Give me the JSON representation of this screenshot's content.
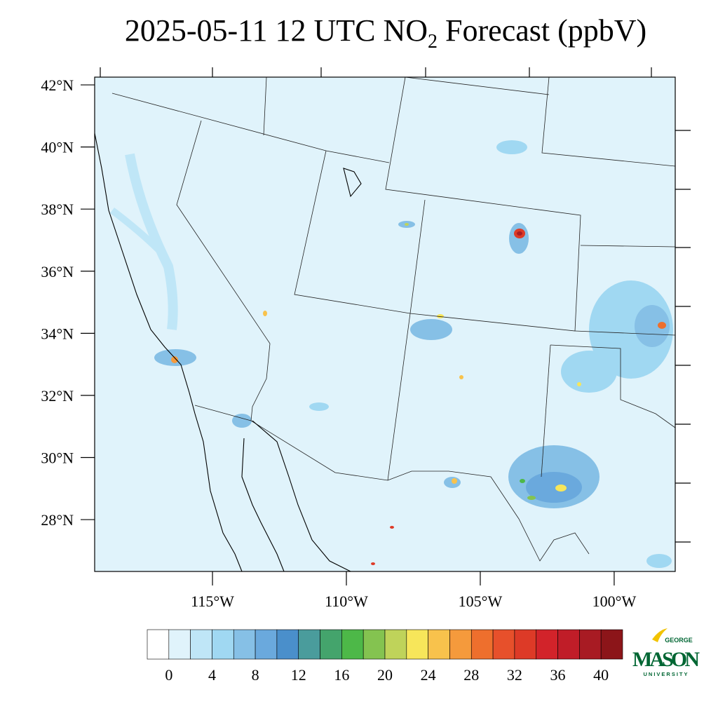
{
  "map": {
    "title": {
      "prefix": "2025-05-11 12 UTC NO",
      "subscript": "2",
      "suffix": " Forecast (ppbV)"
    },
    "xlim": [
      -119.4,
      -97.72
    ],
    "ylim": [
      26.33,
      42.25
    ],
    "xticks": [
      {
        "value": -115,
        "label": "115°W"
      },
      {
        "value": -110,
        "label": "110°W"
      },
      {
        "value": -105,
        "label": "105°W"
      },
      {
        "value": -100,
        "label": "100°W"
      }
    ],
    "yticks": [
      {
        "value": 42,
        "label": "42°N"
      },
      {
        "value": 40,
        "label": "40°N"
      },
      {
        "value": 38,
        "label": "38°N"
      },
      {
        "value": 36,
        "label": "36°N"
      },
      {
        "value": 34,
        "label": "34°N"
      },
      {
        "value": 32,
        "label": "32°N"
      },
      {
        "value": 30,
        "label": "30°N"
      },
      {
        "value": 28,
        "label": "28°N"
      }
    ],
    "colorbar": {
      "colors": [
        "#ffffff",
        "#e0f3fb",
        "#bfe6f7",
        "#a0d8f2",
        "#86c0e6",
        "#6aa9dd",
        "#4a8fcb",
        "#4a9c9c",
        "#44a46c",
        "#4db848",
        "#84c350",
        "#bfd35a",
        "#f7e65a",
        "#f8c24c",
        "#f59a3c",
        "#ee6f2d",
        "#e7502b",
        "#dd3a27",
        "#d2232a",
        "#c01d28",
        "#a81b23",
        "#8c1519"
      ],
      "ticks": [
        0,
        4,
        8,
        12,
        16,
        20,
        24,
        28,
        32,
        36,
        40
      ]
    },
    "logo": {
      "top": "GEORGE",
      "main": "MASON",
      "bottom": "UNIVERSITY"
    }
  }
}
